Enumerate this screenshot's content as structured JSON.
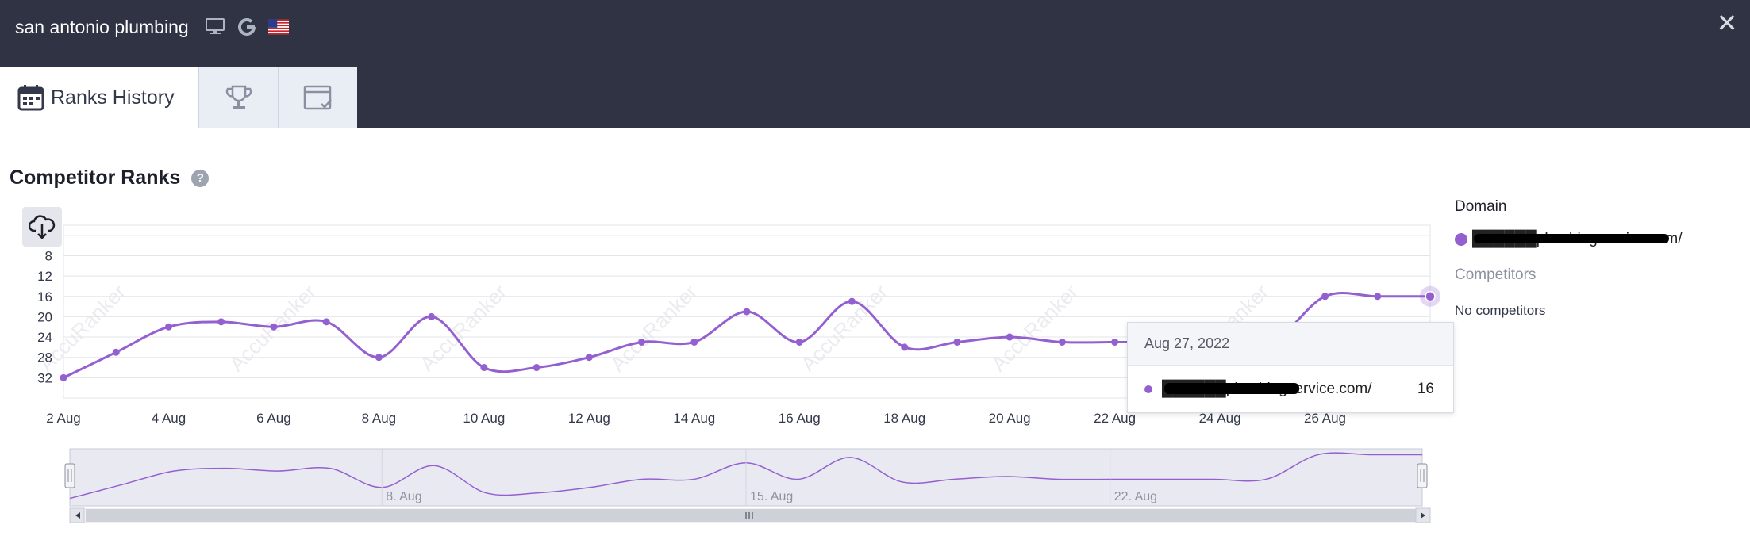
{
  "header": {
    "keyword": "san antonio plumbing",
    "icons": [
      "desktop-icon",
      "google-icon",
      "us-flag-icon"
    ],
    "close_label": "✕"
  },
  "tabs": [
    {
      "label": "Ranks History",
      "icon": "calendar-icon",
      "active": true
    },
    {
      "label": "",
      "icon": "trophy-icon",
      "active": false
    },
    {
      "label": "",
      "icon": "calendar-check-icon",
      "active": false
    }
  ],
  "section": {
    "title": "Competitor Ranks",
    "help": "?"
  },
  "legend": {
    "domain_header": "Domain",
    "domain": "██████plumbingservice.com/",
    "competitors_header": "Competitors",
    "no_competitors": "No competitors"
  },
  "tooltip": {
    "date": "Aug 27, 2022",
    "domain": "██████plumbingservice.com/",
    "rank": "16"
  },
  "colors": {
    "series": "#9460d0",
    "header_bg": "#2f3344"
  },
  "chart_data": {
    "type": "line",
    "title": "",
    "xlabel": "",
    "ylabel": "",
    "reversed_y": true,
    "ylim": [
      36,
      2
    ],
    "yticks": [
      "8",
      "12",
      "16",
      "20",
      "24",
      "28",
      "32"
    ],
    "ytick_values": [
      8,
      12,
      16,
      20,
      24,
      28,
      32
    ],
    "xticks": [
      "2 Aug",
      "4 Aug",
      "6 Aug",
      "8 Aug",
      "10 Aug",
      "12 Aug",
      "14 Aug",
      "16 Aug",
      "18 Aug",
      "20 Aug",
      "22 Aug",
      "24 Aug",
      "26 Aug"
    ],
    "xtick_days": [
      2,
      4,
      6,
      8,
      10,
      12,
      14,
      16,
      18,
      20,
      22,
      24,
      26
    ],
    "x": [
      2,
      3,
      4,
      5,
      6,
      7,
      8,
      9,
      10,
      11,
      12,
      13,
      14,
      15,
      16,
      17,
      18,
      19,
      20,
      21,
      22,
      23,
      24,
      25,
      26,
      27,
      28
    ],
    "series": [
      {
        "name": "",
        "values": [
          32,
          27,
          22,
          21,
          22,
          21,
          28,
          20,
          30,
          30,
          28,
          25,
          25,
          19,
          25,
          17,
          26,
          25,
          24,
          25,
          25,
          25,
          25,
          25,
          16,
          16,
          16
        ]
      }
    ],
    "watermark": "AccuRanker",
    "navigator_labels": [
      "8. Aug",
      "15. Aug",
      "22. Aug"
    ]
  }
}
